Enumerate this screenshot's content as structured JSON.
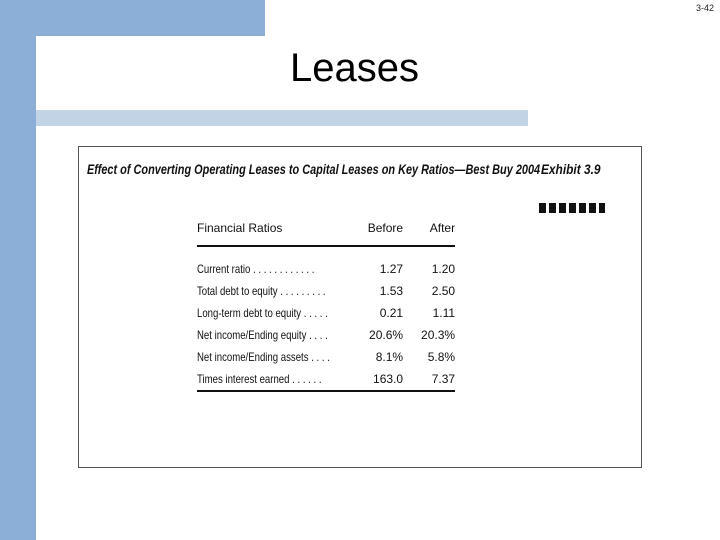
{
  "slide": {
    "number": "3-42",
    "title": "Leases"
  },
  "exhibit": {
    "title": "Effect of Converting Operating Leases to Capital Leases on Key Ratios—Best Buy 2004",
    "label": "Exhibit 3.9",
    "columns": [
      "Financial Ratios",
      "Before",
      "After"
    ],
    "rows": [
      {
        "name": "Current ratio . . . . . . . . . . . .",
        "before": "1.27",
        "after": "1.20"
      },
      {
        "name": "Total debt to equity . . . . . . . . .",
        "before": "1.53",
        "after": "2.50"
      },
      {
        "name": "Long-term debt to equity . . . . .",
        "before": "0.21",
        "after": "1.11"
      },
      {
        "name": "Net income/Ending equity . . . .",
        "before": "20.6%",
        "after": "20.3%"
      },
      {
        "name": "Net income/Ending assets . . . .",
        "before": "8.1%",
        "after": "5.8%"
      },
      {
        "name": "Times interest earned . . . . . .",
        "before": "163.0",
        "after": "7.37"
      }
    ]
  },
  "colors": {
    "accent_blue": "#8bafd6",
    "light_blue": "#c3d3e6"
  }
}
